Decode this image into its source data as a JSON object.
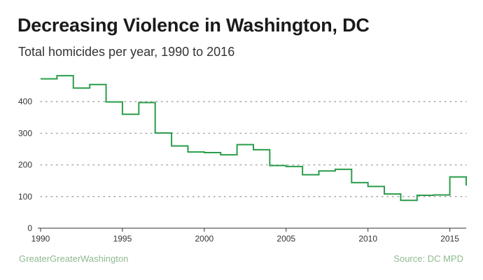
{
  "title": "Decreasing Violence in Washington, DC",
  "subtitle": "Total homicides per year, 1990 to 2016",
  "footer": {
    "credit": "GreaterGreaterWashington",
    "source": "Source: DC MPD"
  },
  "colors": {
    "line": "#2a9d4a",
    "grid": "#999999",
    "footer_text": "#8fba8f"
  },
  "chart_data": {
    "type": "line",
    "step": true,
    "title": "Decreasing Violence in Washington, DC",
    "subtitle": "Total homicides per year, 1990 to 2016",
    "xlabel": "",
    "ylabel": "",
    "xlim": [
      1990,
      2016
    ],
    "ylim": [
      0,
      500
    ],
    "x_ticks": [
      1990,
      1995,
      2000,
      2005,
      2010,
      2015
    ],
    "y_ticks": [
      0,
      100,
      200,
      300,
      400
    ],
    "grid": "horizontal dotted",
    "x": [
      1990,
      1991,
      1992,
      1993,
      1994,
      1995,
      1996,
      1997,
      1998,
      1999,
      2000,
      2001,
      2002,
      2003,
      2004,
      2005,
      2006,
      2007,
      2008,
      2009,
      2010,
      2011,
      2012,
      2013,
      2014,
      2015,
      2016
    ],
    "series": [
      {
        "values": [
          472,
          482,
          443,
          454,
          399,
          360,
          397,
          301,
          260,
          241,
          239,
          232,
          264,
          248,
          198,
          195,
          169,
          181,
          186,
          144,
          132,
          108,
          88,
          104,
          105,
          162,
          135
        ]
      }
    ]
  }
}
